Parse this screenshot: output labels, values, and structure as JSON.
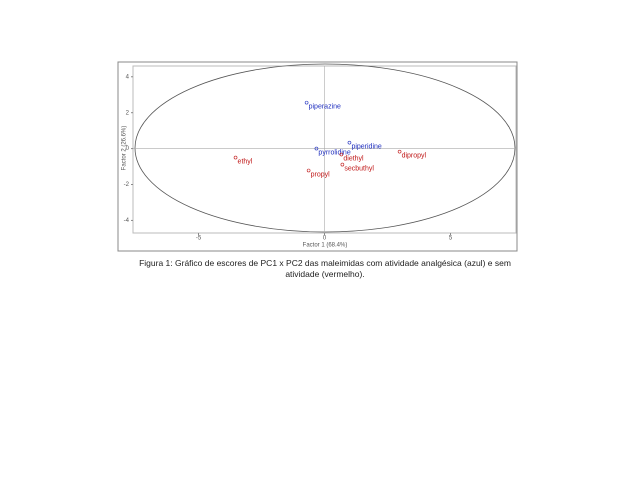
{
  "chart_data": {
    "type": "scatter",
    "xlabel": "Factor 1 (68.4%)",
    "ylabel": "Factor 2 (26.6%)",
    "xlim": [
      -7.6,
      7.6
    ],
    "ylim": [
      -4.7,
      4.6
    ],
    "xticks": [
      -5,
      0,
      5
    ],
    "yticks": [
      -4,
      -2,
      0,
      2,
      4
    ],
    "series": [
      {
        "color": "#1f2fbf",
        "labels": [
          "piperazine",
          "piperidine",
          "pyrrolidine"
        ],
        "x": [
          -0.71,
          0.99,
          -0.32
        ],
        "y": [
          2.56,
          0.33,
          0.0
        ]
      },
      {
        "color": "#c01818",
        "labels": [
          "diethyl",
          "dipropyl",
          "ethyl",
          "propyl",
          "secbuthyl"
        ],
        "x": [
          0.67,
          2.98,
          -3.53,
          -0.63,
          0.71
        ],
        "y": [
          -0.33,
          -0.17,
          -0.5,
          -1.22,
          -0.89
        ]
      }
    ],
    "caption": "Figura 1: Gráfico de escores de PC1 x PC2 das maleimidas com atividade analgésica (azul) e sem atividade (vermelho)."
  }
}
